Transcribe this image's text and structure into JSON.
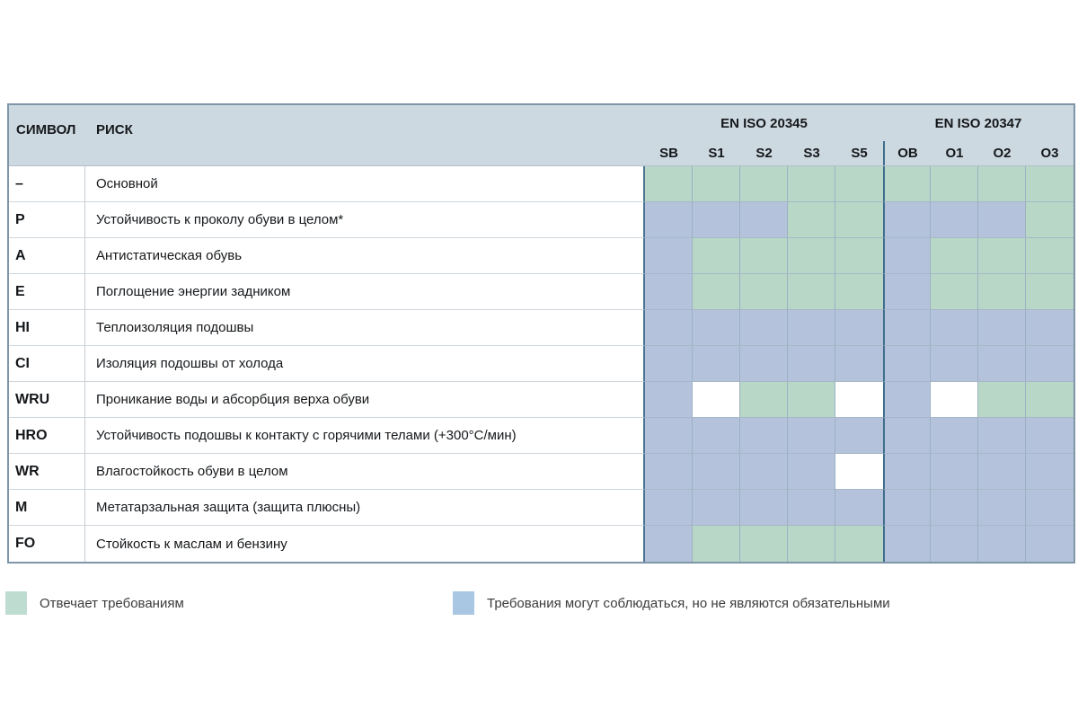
{
  "chart_data": {
    "type": "table",
    "header": {
      "symbol_label": "СИМВОЛ",
      "risk_label": "РИСК",
      "groups": [
        {
          "label": "EN ISO 20345",
          "columns": [
            "SB",
            "S1",
            "S2",
            "S3",
            "S5"
          ]
        },
        {
          "label": "EN ISO 20347",
          "columns": [
            "OB",
            "O1",
            "O2",
            "O3"
          ]
        }
      ]
    },
    "cell_codes": {
      "g": "meets-requirements",
      "b": "optional-not-mandatory",
      "w": "blank"
    },
    "rows": [
      {
        "symbol": "–",
        "risk": "Основной",
        "cells": [
          "g",
          "g",
          "g",
          "g",
          "g",
          "g",
          "g",
          "g",
          "g"
        ]
      },
      {
        "symbol": "P",
        "risk": "Устойчивость к проколу обуви в целом*",
        "cells": [
          "b",
          "b",
          "b",
          "g",
          "g",
          "b",
          "b",
          "b",
          "g"
        ]
      },
      {
        "symbol": "A",
        "risk": "Антистатическая обувь",
        "cells": [
          "b",
          "g",
          "g",
          "g",
          "g",
          "b",
          "g",
          "g",
          "g"
        ]
      },
      {
        "symbol": "E",
        "risk": "Поглощение энергии задником",
        "cells": [
          "b",
          "g",
          "g",
          "g",
          "g",
          "b",
          "g",
          "g",
          "g"
        ]
      },
      {
        "symbol": "HI",
        "risk": "Теплоизоляция подошвы",
        "cells": [
          "b",
          "b",
          "b",
          "b",
          "b",
          "b",
          "b",
          "b",
          "b"
        ]
      },
      {
        "symbol": "CI",
        "risk": "Изоляция подошвы от холода",
        "cells": [
          "b",
          "b",
          "b",
          "b",
          "b",
          "b",
          "b",
          "b",
          "b"
        ]
      },
      {
        "symbol": "WRU",
        "risk": "Проникание воды и абсорбция верха обуви",
        "cells": [
          "b",
          "w",
          "g",
          "g",
          "w",
          "b",
          "w",
          "g",
          "g"
        ]
      },
      {
        "symbol": "HRO",
        "risk": "Устойчивость подошвы к контакту с горячими телами (+300°С/мин)",
        "cells": [
          "b",
          "b",
          "b",
          "b",
          "b",
          "b",
          "b",
          "b",
          "b"
        ]
      },
      {
        "symbol": "WR",
        "risk": "Влагостойкость обуви в целом",
        "cells": [
          "b",
          "b",
          "b",
          "b",
          "w",
          "b",
          "b",
          "b",
          "b"
        ]
      },
      {
        "symbol": "M",
        "risk": "Метатарзальная защита (защита плюсны)",
        "cells": [
          "b",
          "b",
          "b",
          "b",
          "b",
          "b",
          "b",
          "b",
          "b"
        ]
      },
      {
        "symbol": "FO",
        "risk": "Стойкость к маслам и бензину",
        "cells": [
          "b",
          "g",
          "g",
          "g",
          "g",
          "b",
          "b",
          "b",
          "b"
        ]
      }
    ]
  },
  "legend": {
    "items": [
      {
        "swatch": "green",
        "label": "Отвечает требованиям"
      },
      {
        "swatch": "blue",
        "label": "Требования могут соблюдаться, но не являются обязательными"
      }
    ]
  },
  "colors": {
    "cell_green": "#b8d7c7",
    "cell_blue": "#b4c3db",
    "cell_white": "#ffffff",
    "legend_green": "#bedccf",
    "legend_blue": "#a9c7e3",
    "header_bg": "#cdd9e1",
    "grid_line": "#9bb0c4",
    "outer_border": "#7f96a8",
    "dark_divider": "#416d8d",
    "risk_divider": "#4b7592"
  }
}
